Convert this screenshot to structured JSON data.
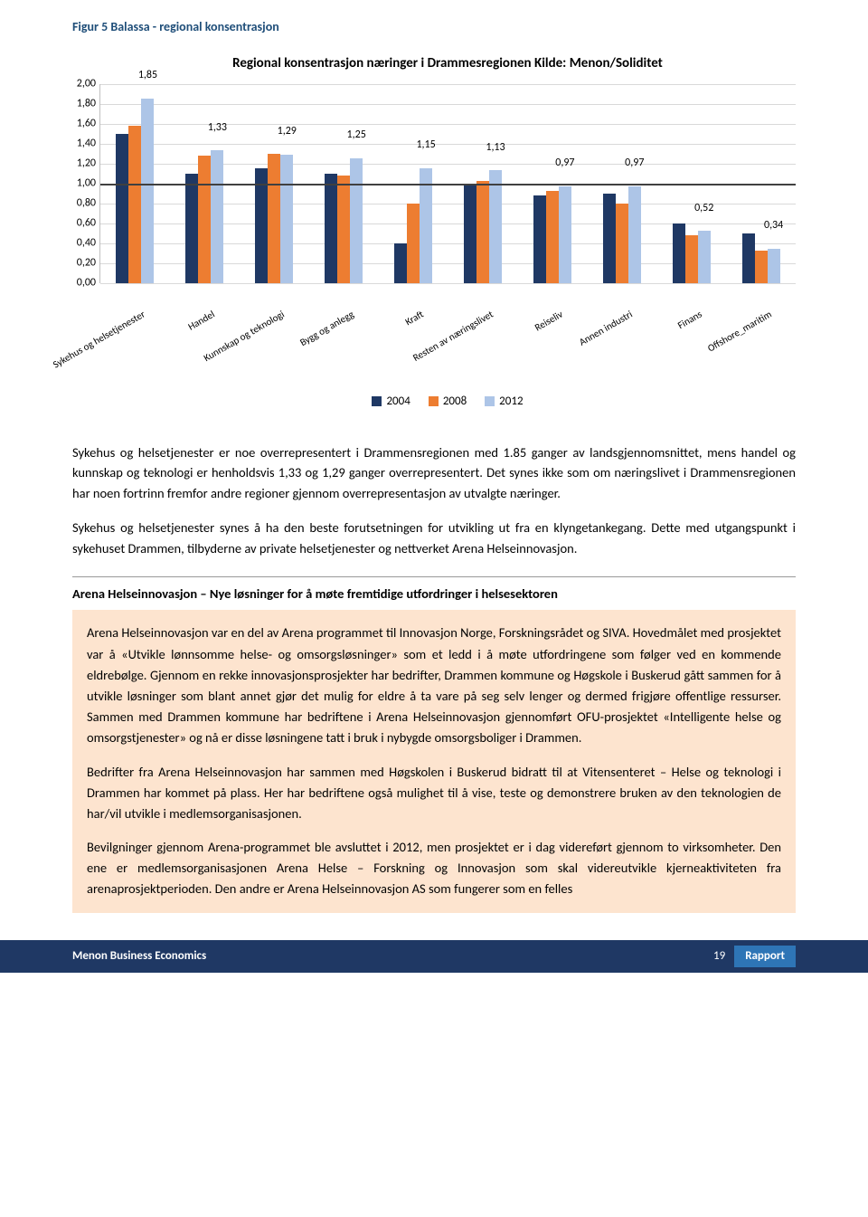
{
  "figureTitle": "Figur 5 Balassa - regional konsentrasjon",
  "chart": {
    "title": "Regional konsentrasjon næringer i Drammesregionen Kilde: Menon/Soliditet",
    "ymax": 2.0,
    "ystep": 0.2,
    "baseline": 1.0,
    "colors": {
      "s2004": "#1f3864",
      "s2008": "#ed7d31",
      "s2012": "#adc5e7"
    },
    "yticks": [
      "0,00",
      "0,20",
      "0,40",
      "0,60",
      "0,80",
      "1,00",
      "1,20",
      "1,40",
      "1,60",
      "1,80",
      "2,00"
    ],
    "legend": [
      "2004",
      "2008",
      "2012"
    ],
    "categories": [
      {
        "name": "Sykehus og helsetjenester",
        "v": [
          1.5,
          1.58,
          1.85
        ],
        "label": "1,85"
      },
      {
        "name": "Handel",
        "v": [
          1.1,
          1.28,
          1.33
        ],
        "label": "1,33"
      },
      {
        "name": "Kunnskap og teknologi",
        "v": [
          1.15,
          1.3,
          1.29
        ],
        "label": "1,29"
      },
      {
        "name": "Bygg og anlegg",
        "v": [
          1.1,
          1.08,
          1.25
        ],
        "label": "1,25"
      },
      {
        "name": "Kraft",
        "v": [
          0.4,
          0.8,
          1.15
        ],
        "label": "1,15"
      },
      {
        "name": "Resten av næringslivet",
        "v": [
          1.0,
          1.02,
          1.13
        ],
        "label": "1,13"
      },
      {
        "name": "Reiseliv",
        "v": [
          0.88,
          0.92,
          0.97
        ],
        "label": "0,97"
      },
      {
        "name": "Annen industri",
        "v": [
          0.9,
          0.8,
          0.97
        ],
        "label": "0,97"
      },
      {
        "name": "Finans",
        "v": [
          0.6,
          0.48,
          0.52
        ],
        "label": "0,52"
      },
      {
        "name": "Offshore_maritim",
        "v": [
          0.5,
          0.32,
          0.34
        ],
        "label": "0,34"
      }
    ]
  },
  "para1": "Sykehus og helsetjenester er noe overrepresentert i Drammensregionen med 1.85 ganger av landsgjennomsnittet, mens handel og kunnskap og teknologi er henholdsvis 1,33 og 1,29 ganger overrepresentert. Det synes ikke som om næringslivet i Drammensregionen har noen fortrinn fremfor andre regioner gjennom overrepresentasjon av utvalgte næringer.",
  "para2": "Sykehus og helsetjenester synes å ha den beste forutsetningen for utvikling ut fra en klyngetankegang. Dette med utgangspunkt i sykehuset Drammen, tilbyderne av private helsetjenester og nettverket Arena Helseinnovasjon.",
  "boxTitle": "Arena Helseinnovasjon – Nye løsninger for å møte fremtidige utfordringer i helsesektoren",
  "box": {
    "p1": "Arena Helseinnovasjon var en del av Arena programmet til Innovasjon Norge, Forskningsrådet og SIVA. Hovedmålet med prosjektet var å «Utvikle lønnsomme helse- og omsorgsløsninger» som et ledd i å møte utfordringene som følger ved en kommende eldrebølge. Gjennom en rekke innovasjonsprosjekter har bedrifter, Drammen kommune og Høgskole i Buskerud gått sammen for å utvikle løsninger som blant annet gjør det mulig for eldre å ta vare på seg selv lenger og dermed frigjøre offentlige ressurser. Sammen med Drammen kommune har bedriftene i Arena Helseinnovasjon gjennomført OFU-prosjektet «Intelligente helse og omsorgstjenester» og nå er disse løsningene tatt i bruk i nybygde omsorgsboliger i Drammen.",
    "p2": "Bedrifter fra Arena Helseinnovasjon har sammen med Høgskolen i Buskerud bidratt til at Vitensenteret – Helse og teknologi i Drammen har kommet på plass. Her har bedriftene også mulighet til å vise, teste og demonstrere bruken av den teknologien de har/vil utvikle i medlemsorganisasjonen.",
    "p3": "Bevilgninger gjennom Arena-programmet ble avsluttet i 2012, men prosjektet er i dag videreført gjennom to virksomheter. Den ene er medlemsorganisasjonen Arena Helse – Forskning og Innovasjon som skal videreutvikle kjerneaktiviteten fra arenaprosjektperioden. Den andre er Arena Helseinnovasjon AS som fungerer som en felles"
  },
  "footer": {
    "left": "Menon Business Economics",
    "page": "19",
    "right": "Rapport"
  }
}
